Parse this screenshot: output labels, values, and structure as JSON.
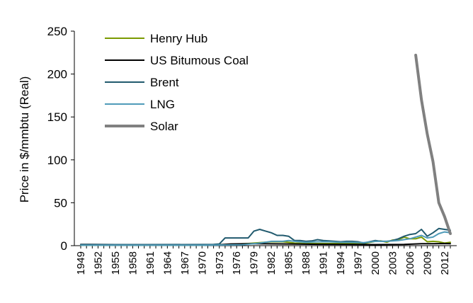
{
  "chart_data": {
    "type": "line",
    "title": "",
    "xlabel": "",
    "ylabel": "Price in $/mmbtu (Real)",
    "ylim": [
      0,
      250
    ],
    "yticks": [
      0,
      50,
      100,
      150,
      200,
      250
    ],
    "xlim": [
      1949,
      2013
    ],
    "xticks": [
      1949,
      1952,
      1955,
      1958,
      1961,
      1964,
      1967,
      1970,
      1973,
      1976,
      1979,
      1982,
      1985,
      1988,
      1991,
      1994,
      1997,
      2000,
      2003,
      2006,
      2009,
      2012
    ],
    "legend_position": "top-left",
    "grid": false,
    "series": [
      {
        "name": "Henry Hub",
        "color": "#7a9a01",
        "stroke_weight": "thin",
        "x": [
          1949,
          1955,
          1960,
          1965,
          1970,
          1975,
          1978,
          1980,
          1982,
          1984,
          1985,
          1986,
          1988,
          1990,
          1992,
          1994,
          1996,
          1998,
          2000,
          2001,
          2002,
          2003,
          2004,
          2005,
          2006,
          2007,
          2008,
          2009,
          2010,
          2011,
          2012,
          2013
        ],
        "y": [
          0.5,
          0.6,
          0.6,
          0.7,
          0.7,
          1.5,
          2.5,
          3.5,
          4.5,
          4.5,
          4,
          3,
          2.5,
          2.5,
          2.5,
          2.5,
          3,
          2.5,
          5,
          5.5,
          4,
          6.5,
          7,
          10,
          8,
          8,
          10,
          4.5,
          5,
          4.5,
          3,
          4
        ]
      },
      {
        "name": "US Bitumous Coal",
        "color": "#000000",
        "stroke_weight": "thin",
        "x": [
          1949,
          1955,
          1960,
          1965,
          1970,
          1973,
          1975,
          1978,
          1980,
          1985,
          1990,
          1995,
          2000,
          2005,
          2008,
          2010,
          2012,
          2013
        ],
        "y": [
          1.5,
          1.2,
          1.1,
          1,
          1,
          1,
          2,
          2.2,
          2.3,
          2,
          1.6,
          1.4,
          1.2,
          1.4,
          2.2,
          2.3,
          2.5,
          2.3
        ]
      },
      {
        "name": "Brent",
        "color": "#215a6e",
        "stroke_weight": "thin",
        "x": [
          1949,
          1960,
          1970,
          1972,
          1973,
          1974,
          1978,
          1979,
          1980,
          1981,
          1982,
          1983,
          1984,
          1985,
          1986,
          1987,
          1988,
          1989,
          1990,
          1991,
          1992,
          1993,
          1994,
          1995,
          1996,
          1997,
          1998,
          1999,
          2000,
          2001,
          2002,
          2003,
          2004,
          2005,
          2006,
          2007,
          2008,
          2009,
          2010,
          2011,
          2012,
          2013
        ],
        "y": [
          1.2,
          1.2,
          1.3,
          1.5,
          2,
          9,
          9,
          17,
          19,
          17,
          15,
          12,
          12,
          11,
          6,
          6,
          5,
          5.5,
          7,
          6,
          5.5,
          5,
          4.5,
          5,
          5,
          4.5,
          3,
          4.5,
          6,
          5,
          5,
          6,
          8,
          11,
          13,
          14,
          19,
          11,
          15,
          20,
          19,
          18
        ]
      },
      {
        "name": "LNG",
        "color": "#4f9bb9",
        "stroke_weight": "thin",
        "x": [
          1949,
          1970,
          1977,
          1980,
          1982,
          1984,
          1985,
          1986,
          1988,
          1990,
          1992,
          1994,
          1996,
          1998,
          2000,
          2002,
          2004,
          2006,
          2008,
          2009,
          2010,
          2011,
          2012,
          2013
        ],
        "y": [
          0.5,
          0.5,
          1,
          3,
          5,
          5,
          6,
          5,
          4,
          4.5,
          4.5,
          4,
          4,
          3.5,
          5,
          5,
          6,
          8,
          12,
          9,
          10,
          14,
          16,
          15
        ]
      },
      {
        "name": "Solar",
        "color": "#808080",
        "stroke_weight": "thick",
        "x": [
          2007,
          2008,
          2009,
          2010,
          2011,
          2012,
          2013
        ],
        "y": [
          222,
          170,
          130,
          98,
          50,
          34,
          14
        ]
      }
    ]
  }
}
